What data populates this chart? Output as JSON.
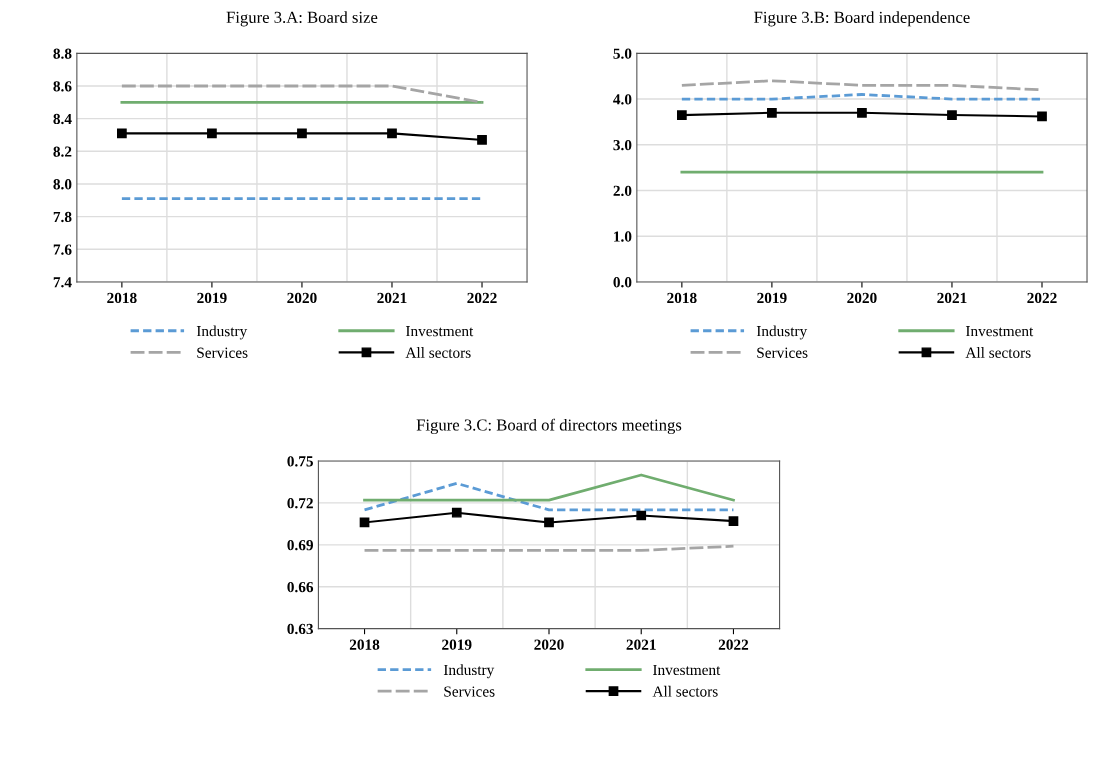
{
  "chart_data": [
    {
      "type": "line",
      "title": "Figure 3.A: Board size",
      "categories": [
        "2018",
        "2019",
        "2020",
        "2021",
        "2022"
      ],
      "ylim": [
        7.4,
        8.8
      ],
      "yticks": [
        7.4,
        7.6,
        7.8,
        {
          "value": 8,
          "label": "8.0"
        },
        8.2,
        8.4,
        8.6,
        8.8
      ],
      "grid": true,
      "legend": "bottom",
      "series": [
        {
          "name": "Industry",
          "color": "#5b9bd5",
          "line_style": "dashed",
          "marker": "none",
          "values": [
            7.91,
            7.91,
            7.91,
            7.91,
            7.91
          ]
        },
        {
          "name": "Investment",
          "color": "#70ad6f",
          "line_style": "solid",
          "marker": "none",
          "values": [
            8.5,
            8.5,
            8.5,
            8.5,
            8.5
          ]
        },
        {
          "name": "Services",
          "color": "#a5a5a5",
          "line_style": "dashed",
          "marker": "none",
          "values": [
            8.6,
            8.6,
            8.6,
            8.6,
            8.5
          ]
        },
        {
          "name": "All sectors",
          "color": "#000000",
          "line_style": "solid",
          "marker": "square",
          "values": [
            8.31,
            8.31,
            8.31,
            8.31,
            8.27
          ]
        }
      ]
    },
    {
      "type": "line",
      "title": "Figure 3.B: Board independence",
      "categories": [
        "2018",
        "2019",
        "2020",
        "2021",
        "2022"
      ],
      "ylim": [
        0,
        5
      ],
      "yticks": [
        {
          "value": 0,
          "label": "0.0"
        },
        {
          "value": 1,
          "label": "1.0"
        },
        {
          "value": 2,
          "label": "2.0"
        },
        {
          "value": 3,
          "label": "3.0"
        },
        {
          "value": 4,
          "label": "4.0"
        },
        {
          "value": 5,
          "label": "5.0"
        }
      ],
      "grid": true,
      "legend": "bottom",
      "series": [
        {
          "name": "Industry",
          "color": "#5b9bd5",
          "line_style": "dashed",
          "marker": "none",
          "values": [
            4.0,
            4.0,
            4.1,
            4.0,
            4.0
          ]
        },
        {
          "name": "Investment",
          "color": "#70ad6f",
          "line_style": "solid",
          "marker": "none",
          "values": [
            2.4,
            2.4,
            2.4,
            2.4,
            2.4
          ]
        },
        {
          "name": "Services",
          "color": "#a5a5a5",
          "line_style": "dashed",
          "marker": "none",
          "values": [
            4.3,
            4.4,
            4.3,
            4.3,
            4.2
          ]
        },
        {
          "name": "All sectors",
          "color": "#000000",
          "line_style": "solid",
          "marker": "square",
          "values": [
            3.65,
            3.7,
            3.7,
            3.65,
            3.62
          ]
        }
      ]
    },
    {
      "type": "line",
      "title": "Figure 3.C: Board of directors meetings",
      "categories": [
        "2018",
        "2019",
        "2020",
        "2021",
        "2022"
      ],
      "ylim": [
        0.63,
        0.75
      ],
      "yticks": [
        0.63,
        0.66,
        0.69,
        0.72,
        0.75
      ],
      "grid": true,
      "legend": "bottom",
      "series": [
        {
          "name": "Industry",
          "color": "#5b9bd5",
          "line_style": "dashed",
          "marker": "none",
          "values": [
            0.715,
            0.734,
            0.715,
            0.715,
            0.715
          ]
        },
        {
          "name": "Investment",
          "color": "#70ad6f",
          "line_style": "solid",
          "marker": "none",
          "values": [
            0.722,
            0.722,
            0.722,
            0.74,
            0.722
          ]
        },
        {
          "name": "Services",
          "color": "#a5a5a5",
          "line_style": "dashed",
          "marker": "none",
          "values": [
            0.686,
            0.686,
            0.686,
            0.686,
            0.689
          ]
        },
        {
          "name": "All sectors",
          "color": "#000000",
          "line_style": "solid",
          "marker": "square",
          "values": [
            0.706,
            0.713,
            0.706,
            0.711,
            0.707
          ]
        }
      ]
    }
  ]
}
